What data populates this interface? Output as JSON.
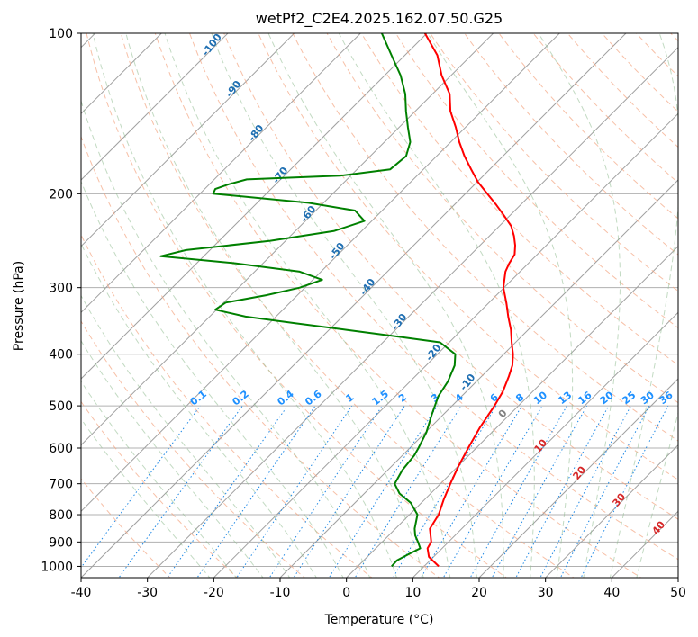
{
  "chart_data": {
    "type": "line",
    "title": "wetPf2_C2E4.2025.162.07.50.G25",
    "xlabel": "Temperature (°C)",
    "ylabel": "Pressure (hPa)",
    "xlim": [
      -40,
      50
    ],
    "ylim": [
      1050,
      100
    ],
    "y_scale": "log",
    "skew_deg": 45,
    "grid": true,
    "x_ticks": [
      -40,
      -30,
      -20,
      -10,
      0,
      10,
      20,
      30,
      40,
      50
    ],
    "y_ticks": [
      1000,
      900,
      800,
      700,
      600,
      500,
      400,
      300,
      200,
      100
    ],
    "series": [
      {
        "color": "#ff0000",
        "points": [
          [
            1000,
            12.2
          ],
          [
            960,
            9.3
          ],
          [
            925,
            7.8
          ],
          [
            900,
            7.4
          ],
          [
            850,
            5.2
          ],
          [
            800,
            4.4
          ],
          [
            750,
            2.9
          ],
          [
            700,
            1.5
          ],
          [
            650,
            0.1
          ],
          [
            600,
            -1.2
          ],
          [
            550,
            -2.5
          ],
          [
            500,
            -3.6
          ],
          [
            470,
            -4.5
          ],
          [
            440,
            -5.9
          ],
          [
            420,
            -7.0
          ],
          [
            400,
            -8.6
          ],
          [
            380,
            -10.6
          ],
          [
            360,
            -12.6
          ],
          [
            340,
            -15.0
          ],
          [
            320,
            -17.4
          ],
          [
            300,
            -20.1
          ],
          [
            280,
            -22.2
          ],
          [
            270,
            -22.9
          ],
          [
            260,
            -23.4
          ],
          [
            250,
            -24.7
          ],
          [
            240,
            -26.3
          ],
          [
            230,
            -28.2
          ],
          [
            220,
            -30.8
          ],
          [
            210,
            -33.6
          ],
          [
            200,
            -36.7
          ],
          [
            190,
            -39.9
          ],
          [
            180,
            -42.8
          ],
          [
            170,
            -45.8
          ],
          [
            160,
            -48.7
          ],
          [
            150,
            -51.5
          ],
          [
            140,
            -54.7
          ],
          [
            130,
            -57.4
          ],
          [
            120,
            -61.4
          ],
          [
            110,
            -65.1
          ],
          [
            100,
            -70.3
          ]
        ]
      },
      {
        "color": "#008000",
        "points": [
          [
            1000,
            5.1
          ],
          [
            975,
            5.0
          ],
          [
            950,
            5.8
          ],
          [
            925,
            6.7
          ],
          [
            900,
            5.4
          ],
          [
            875,
            4.0
          ],
          [
            850,
            2.9
          ],
          [
            800,
            1.2
          ],
          [
            760,
            -1.6
          ],
          [
            730,
            -4.7
          ],
          [
            700,
            -6.9
          ],
          [
            660,
            -7.8
          ],
          [
            620,
            -8.2
          ],
          [
            600,
            -8.7
          ],
          [
            560,
            -9.9
          ],
          [
            520,
            -11.7
          ],
          [
            480,
            -13.5
          ],
          [
            450,
            -14.3
          ],
          [
            420,
            -15.7
          ],
          [
            400,
            -17.3
          ],
          [
            380,
            -21.4
          ],
          [
            370,
            -29.2
          ],
          [
            360,
            -37.4
          ],
          [
            350,
            -46.1
          ],
          [
            340,
            -54.6
          ],
          [
            330,
            -60.2
          ],
          [
            320,
            -59.7
          ],
          [
            310,
            -54.7
          ],
          [
            300,
            -50.8
          ],
          [
            290,
            -48.6
          ],
          [
            280,
            -53.2
          ],
          [
            270,
            -64.2
          ],
          [
            262,
            -76.5
          ],
          [
            255,
            -73.6
          ],
          [
            245,
            -62.3
          ],
          [
            235,
            -54.2
          ],
          [
            225,
            -51.1
          ],
          [
            215,
            -54.1
          ],
          [
            208,
            -62.3
          ],
          [
            202,
            -73.9
          ],
          [
            200,
            -78.0
          ],
          [
            196,
            -78.4
          ],
          [
            192,
            -77.1
          ],
          [
            188,
            -75.1
          ],
          [
            185,
            -61.6
          ],
          [
            180,
            -55.0
          ],
          [
            170,
            -54.6
          ],
          [
            160,
            -56.1
          ],
          [
            150,
            -58.7
          ],
          [
            140,
            -61.4
          ],
          [
            130,
            -64.1
          ],
          [
            120,
            -67.6
          ],
          [
            110,
            -72.0
          ],
          [
            100,
            -76.8
          ]
        ]
      }
    ],
    "dry_adiabat_labels": [
      "-100",
      "-90",
      "-80",
      "-70",
      "-60",
      "-50",
      "-40",
      "-30",
      "-20",
      "-10",
      "0"
    ],
    "mixing_ratio_labels": [
      "0.1",
      "0.2",
      "0.4",
      "0.6",
      "1",
      "1.5",
      "2",
      "3",
      "4",
      "6",
      "8",
      "10",
      "13",
      "16",
      "20",
      "25",
      "30",
      "36"
    ],
    "moist_adiabat_labels": [
      "10",
      "20",
      "30",
      "40"
    ]
  }
}
